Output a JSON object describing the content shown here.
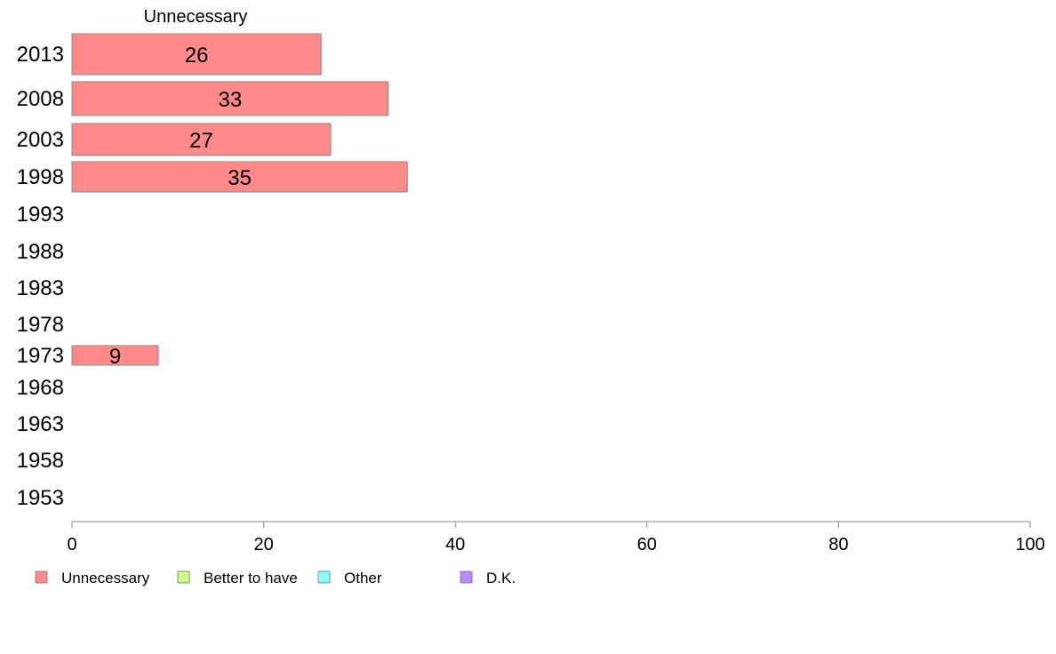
{
  "chart_data": {
    "type": "bar",
    "orientation": "horizontal",
    "stacked": true,
    "header": "Unnecessary",
    "categories": [
      "2013",
      "2008",
      "2003",
      "1998",
      "1993",
      "1988",
      "1983",
      "1978",
      "1973",
      "1968",
      "1963",
      "1958",
      "1953"
    ],
    "series": [
      {
        "name": "Unnecessary",
        "color": "#ff8a8a",
        "values": [
          26,
          33,
          27,
          35,
          null,
          null,
          null,
          null,
          9,
          null,
          null,
          null,
          null
        ]
      },
      {
        "name": "Better to have",
        "color": "#ccff88",
        "values": [
          null,
          null,
          null,
          null,
          null,
          null,
          null,
          null,
          null,
          null,
          null,
          null,
          null
        ]
      },
      {
        "name": "Other",
        "color": "#88ffff",
        "values": [
          null,
          null,
          null,
          null,
          null,
          null,
          null,
          null,
          null,
          null,
          null,
          null,
          null
        ]
      },
      {
        "name": "D.K.",
        "color": "#c088ff",
        "values": [
          null,
          null,
          null,
          null,
          null,
          null,
          null,
          null,
          null,
          null,
          null,
          null,
          null
        ]
      }
    ],
    "xlim": [
      0,
      100
    ],
    "xticks": [
      0,
      20,
      40,
      60,
      80,
      100
    ],
    "grid": false,
    "legend_position": "bottom"
  }
}
